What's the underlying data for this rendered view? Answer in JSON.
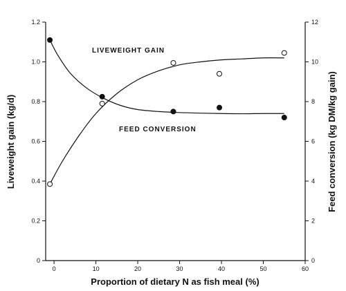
{
  "chart_data": {
    "type": "scatter",
    "xlabel": "Proportion of dietary N as fish meal (%)",
    "ylabel_left": "Liveweight gain (kg/d)",
    "ylabel_right": "Feed conversion (kg DM/kg gain)",
    "xlim": [
      -2,
      60
    ],
    "ylim_left": [
      0,
      1.2
    ],
    "ylim_right": [
      0,
      12
    ],
    "x_ticks": [
      "0",
      "10",
      "20",
      "30",
      "40",
      "50",
      "60"
    ],
    "y_left_ticks": [
      "0",
      "0.2",
      "0.4",
      "0.6",
      "0.8",
      "1.0",
      "1.2"
    ],
    "y_right_ticks": [
      "0",
      "2",
      "4",
      "6",
      "8",
      "10",
      "12"
    ],
    "grid": false,
    "series": [
      {
        "name": "LIVEWEIGHT GAIN",
        "axis": "left",
        "marker": "open-circle",
        "points": [
          [
            -1,
            0.385
          ],
          [
            11.5,
            0.79
          ],
          [
            28.5,
            0.995
          ],
          [
            39.5,
            0.94
          ],
          [
            55,
            1.045
          ]
        ],
        "fit": [
          [
            -1,
            0.385
          ],
          [
            2,
            0.5
          ],
          [
            6,
            0.63
          ],
          [
            10,
            0.74
          ],
          [
            15,
            0.84
          ],
          [
            20,
            0.91
          ],
          [
            25,
            0.955
          ],
          [
            30,
            0.985
          ],
          [
            35,
            1.0
          ],
          [
            40,
            1.01
          ],
          [
            45,
            1.015
          ],
          [
            50,
            1.02
          ],
          [
            55,
            1.02
          ]
        ]
      },
      {
        "name": "FEED CONVERSION",
        "axis": "right",
        "marker": "filled-circle",
        "points": [
          [
            -1,
            11.1
          ],
          [
            11.5,
            8.25
          ],
          [
            28.5,
            7.5
          ],
          [
            39.5,
            7.7
          ],
          [
            55,
            7.2
          ]
        ],
        "fit": [
          [
            -1,
            11.1
          ],
          [
            1,
            10.3
          ],
          [
            4,
            9.4
          ],
          [
            8,
            8.65
          ],
          [
            12,
            8.15
          ],
          [
            16,
            7.8
          ],
          [
            20,
            7.6
          ],
          [
            25,
            7.5
          ],
          [
            30,
            7.45
          ],
          [
            35,
            7.42
          ],
          [
            40,
            7.4
          ],
          [
            45,
            7.39
          ],
          [
            50,
            7.4
          ],
          [
            55,
            7.4
          ]
        ]
      }
    ]
  },
  "annotations": {
    "liveweight_gain": "LIVEWEIGHT GAIN",
    "feed_conversion": "FEED CONVERSION"
  }
}
